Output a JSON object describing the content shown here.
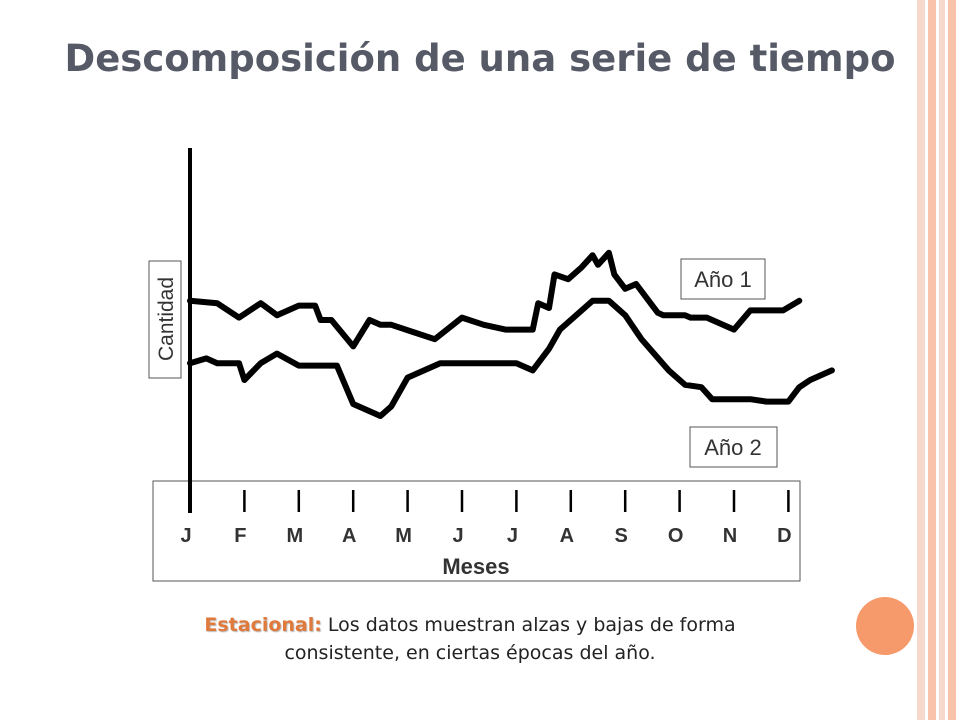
{
  "slide": {
    "title": "Descomposición de una serie de tiempo",
    "footer_label": "Estacional:",
    "footer_text": "Los datos muestran alzas y bajas de forma consistente, en ciertas épocas del año.",
    "accent_color": "#e07a3c",
    "decor_circle_color": "#f79a6b"
  },
  "chart_data": {
    "type": "line",
    "xlabel": "Meses",
    "ylabel": "Cantidad",
    "categories": [
      "J",
      "F",
      "M",
      "A",
      "M",
      "J",
      "J",
      "A",
      "S",
      "O",
      "N",
      "D"
    ],
    "ylim": [
      0,
      100
    ],
    "grid": false,
    "legend": "inline labels on series lines",
    "series": [
      {
        "name": "Año 1",
        "color": "#000000",
        "x": [
          0,
          0.5,
          0.9,
          1.3,
          1.6,
          2.0,
          2.3,
          2.4,
          2.6,
          3.0,
          3.3,
          3.5,
          3.7,
          4.1,
          4.5,
          5.0,
          5.4,
          5.8,
          6.3,
          6.4,
          6.6,
          6.7,
          6.95,
          7.2,
          7.4,
          7.5,
          7.7,
          7.8,
          8.0,
          8.2,
          8.6,
          8.7,
          9.1,
          9.2,
          9.5,
          10.0,
          10.3,
          10.5,
          10.9,
          11.2
        ],
        "values": [
          58,
          57,
          51,
          57,
          52,
          56,
          56,
          50,
          50,
          39,
          50,
          48,
          48,
          45,
          42,
          51,
          48,
          46,
          46,
          57,
          55,
          69,
          67,
          72,
          77,
          73,
          78,
          69,
          63,
          65,
          53,
          52,
          52,
          51,
          51,
          46,
          54,
          54,
          54,
          58
        ]
      },
      {
        "name": "Año 2",
        "color": "#000000",
        "x": [
          0,
          0.3,
          0.5,
          0.9,
          1.0,
          1.3,
          1.6,
          2.0,
          2.3,
          2.5,
          2.7,
          3.0,
          3.5,
          3.7,
          4.0,
          4.6,
          5.6,
          6.0,
          6.3,
          6.6,
          6.8,
          7.0,
          7.4,
          7.7,
          8.0,
          8.3,
          8.8,
          9.1,
          9.4,
          9.6,
          10.0,
          10.3,
          10.6,
          11.0,
          11.2,
          11.4,
          11.8
        ],
        "values": [
          32,
          34,
          32,
          32,
          25,
          32,
          36,
          31,
          31,
          31,
          31,
          15,
          10,
          14,
          26,
          32,
          32,
          32,
          29,
          38,
          46,
          50,
          58,
          58,
          52,
          42,
          29,
          23,
          22,
          17,
          17,
          17,
          16,
          16,
          22,
          25,
          29
        ]
      }
    ],
    "annotations": [
      {
        "text": "Año 1",
        "series": "Año 1"
      },
      {
        "text": "Año 2",
        "series": "Año 2"
      }
    ]
  }
}
